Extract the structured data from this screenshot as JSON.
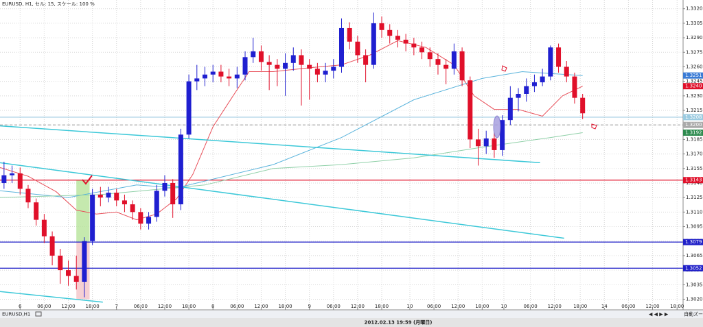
{
  "chart_data": {
    "type": "candlestick",
    "title": "EURUSD, H1, セル: 15, スケール: 100 %",
    "tab_label": "EURUSD,H1",
    "status_text": "2012.02.13 19:59 (月曜日)",
    "zoom_label": "自動ズー",
    "up_color": "#1f1fd0",
    "down_color": "#e0102a",
    "grid": true,
    "xlim": [
      -5,
      165
    ],
    "ylim": [
      1.3009,
      1.3329
    ],
    "xticks": [
      {
        "value": 0,
        "label": "6"
      },
      {
        "value": 6,
        "label": "06:00"
      },
      {
        "value": 12,
        "label": "12:00"
      },
      {
        "value": 18,
        "label": "18:00"
      },
      {
        "value": 24,
        "label": "7"
      },
      {
        "value": 30,
        "label": "06:00"
      },
      {
        "value": 36,
        "label": "12:00"
      },
      {
        "value": 42,
        "label": "18:00"
      },
      {
        "value": 48,
        "label": "8"
      },
      {
        "value": 54,
        "label": "06:00"
      },
      {
        "value": 60,
        "label": "12:00"
      },
      {
        "value": 66,
        "label": "18:00"
      },
      {
        "value": 72,
        "label": "9"
      },
      {
        "value": 78,
        "label": "06:00"
      },
      {
        "value": 84,
        "label": "12:00"
      },
      {
        "value": 90,
        "label": "18:00"
      },
      {
        "value": 97,
        "label": "10"
      },
      {
        "value": 103,
        "label": "06:00"
      },
      {
        "value": 109,
        "label": "12:00"
      },
      {
        "value": 115,
        "label": "18:00"
      },
      {
        "value": 120.4,
        "label": "10"
      },
      {
        "value": 127,
        "label": "06:00"
      },
      {
        "value": 133,
        "label": "12:00"
      },
      {
        "value": 139.4,
        "label": "18:00"
      },
      {
        "value": 145.4,
        "label": "14"
      },
      {
        "value": 151.4,
        "label": "06:00"
      },
      {
        "value": 157.4,
        "label": "12:00"
      },
      {
        "value": 163.5,
        "label": "18:00"
      }
    ],
    "yticks": [
      {
        "value": 1.302,
        "label": "1.3020"
      },
      {
        "value": 1.3035,
        "label": "1.3035"
      },
      {
        "value": 1.305,
        "label": "1.3050"
      },
      {
        "value": 1.3065,
        "label": "1.3065"
      },
      {
        "value": 1.308,
        "label": "1.3080"
      },
      {
        "value": 1.3095,
        "label": "1.3095"
      },
      {
        "value": 1.311,
        "label": "1.3110"
      },
      {
        "value": 1.3125,
        "label": "1.3125"
      },
      {
        "value": 1.314,
        "label": "1.3140"
      },
      {
        "value": 1.3155,
        "label": "1.3155"
      },
      {
        "value": 1.317,
        "label": "1.3170"
      },
      {
        "value": 1.3185,
        "label": "1.3185"
      },
      {
        "value": 1.32,
        "label": "1.3200"
      },
      {
        "value": 1.3215,
        "label": "1.3215"
      },
      {
        "value": 1.323,
        "label": "1.3230"
      },
      {
        "value": 1.3245,
        "label": "1.3245"
      },
      {
        "value": 1.326,
        "label": "1.3260"
      },
      {
        "value": 1.3275,
        "label": "1.3275"
      },
      {
        "value": 1.329,
        "label": "1.3290"
      },
      {
        "value": 1.3305,
        "label": "1.3305"
      },
      {
        "value": 1.332,
        "label": "1.3320"
      }
    ],
    "x": [
      -4,
      -2,
      0,
      2,
      4,
      6,
      8,
      10,
      12,
      14,
      16,
      18,
      20,
      22,
      24,
      26,
      28,
      30,
      32,
      34,
      36,
      38,
      40,
      42,
      44,
      46,
      48,
      50,
      52,
      54,
      56,
      58,
      60,
      62,
      64,
      66,
      68,
      70,
      72,
      74,
      76,
      78,
      80,
      82,
      84,
      86,
      88,
      90,
      92,
      94,
      96,
      98,
      100,
      102,
      104,
      106,
      108,
      110,
      112,
      114,
      116,
      118,
      120,
      122,
      124,
      126,
      128,
      130,
      132,
      134,
      136,
      138,
      140
    ],
    "open": [
      1.314,
      1.3148,
      1.315,
      1.3134,
      1.312,
      1.3102,
      1.3085,
      1.3065,
      1.305,
      1.3044,
      1.3038,
      1.308,
      1.3128,
      1.3125,
      1.313,
      1.3122,
      1.3118,
      1.311,
      1.3098,
      1.3105,
      1.3132,
      1.314,
      1.3118,
      1.319,
      1.3245,
      1.3248,
      1.3252,
      1.3255,
      1.325,
      1.3248,
      1.3252,
      1.327,
      1.3276,
      1.3265,
      1.3262,
      1.3258,
      1.3264,
      1.3272,
      1.3262,
      1.3258,
      1.3252,
      1.3256,
      1.326,
      1.33,
      1.3286,
      1.3272,
      1.3262,
      1.3305,
      1.3298,
      1.3292,
      1.3288,
      1.3284,
      1.328,
      1.3275,
      1.3268,
      1.3262,
      1.3258,
      1.3276,
      1.3246,
      1.3185,
      1.3178,
      1.3186,
      1.3174,
      1.3205,
      1.3228,
      1.3232,
      1.324,
      1.3244,
      1.325,
      1.328,
      1.326,
      1.325,
      1.3228
    ],
    "high": [
      1.3162,
      1.3158,
      1.3156,
      1.3138,
      1.3124,
      1.3108,
      1.309,
      1.3072,
      1.306,
      1.3065,
      1.3084,
      1.3134,
      1.3136,
      1.3136,
      1.3134,
      1.3128,
      1.3122,
      1.3114,
      1.311,
      1.3138,
      1.3148,
      1.3144,
      1.3196,
      1.3252,
      1.3262,
      1.326,
      1.3262,
      1.3262,
      1.3258,
      1.326,
      1.3276,
      1.329,
      1.3282,
      1.3272,
      1.3268,
      1.3274,
      1.328,
      1.3278,
      1.3268,
      1.3264,
      1.3264,
      1.3268,
      1.331,
      1.3306,
      1.3292,
      1.3278,
      1.3316,
      1.3312,
      1.3304,
      1.3298,
      1.3294,
      1.329,
      1.3286,
      1.328,
      1.3274,
      1.3268,
      1.3284,
      1.328,
      1.325,
      1.3196,
      1.3194,
      1.3192,
      1.321,
      1.324,
      1.3238,
      1.3248,
      1.3252,
      1.3258,
      1.3282,
      1.3284,
      1.3266,
      1.3254,
      1.3232
    ],
    "low": [
      1.3134,
      1.314,
      1.3128,
      1.3114,
      1.3096,
      1.3078,
      1.3055,
      1.3036,
      1.3034,
      1.303,
      1.3022,
      1.3076,
      1.3116,
      1.312,
      1.3116,
      1.311,
      1.3102,
      1.3092,
      1.3092,
      1.31,
      1.3126,
      1.3104,
      1.3112,
      1.3186,
      1.3236,
      1.324,
      1.3244,
      1.3244,
      1.324,
      1.3238,
      1.3246,
      1.3264,
      1.3256,
      1.3236,
      1.324,
      1.323,
      1.3256,
      1.322,
      1.3226,
      1.3244,
      1.3244,
      1.3248,
      1.3254,
      1.3278,
      1.3264,
      1.3244,
      1.3258,
      1.329,
      1.3284,
      1.328,
      1.3276,
      1.3272,
      1.3268,
      1.326,
      1.3252,
      1.3242,
      1.3252,
      1.324,
      1.3176,
      1.3158,
      1.317,
      1.3166,
      1.3168,
      1.32,
      1.3214,
      1.3224,
      1.3234,
      1.324,
      1.3246,
      1.3254,
      1.3244,
      1.3222,
      1.3206
    ],
    "close": [
      1.3148,
      1.315,
      1.3134,
      1.312,
      1.3102,
      1.3085,
      1.3065,
      1.305,
      1.3044,
      1.3038,
      1.308,
      1.3128,
      1.3125,
      1.313,
      1.3122,
      1.3118,
      1.311,
      1.3098,
      1.3105,
      1.3132,
      1.314,
      1.3118,
      1.319,
      1.3245,
      1.3248,
      1.3252,
      1.3255,
      1.325,
      1.3248,
      1.3252,
      1.327,
      1.3276,
      1.3265,
      1.3262,
      1.3258,
      1.3264,
      1.3272,
      1.3262,
      1.3258,
      1.3252,
      1.3256,
      1.326,
      1.33,
      1.3286,
      1.3272,
      1.3262,
      1.3305,
      1.3298,
      1.3292,
      1.3288,
      1.3284,
      1.328,
      1.3275,
      1.3268,
      1.3262,
      1.3258,
      1.3276,
      1.3246,
      1.3185,
      1.3178,
      1.3186,
      1.3174,
      1.3205,
      1.3228,
      1.3232,
      1.324,
      1.3244,
      1.325,
      1.328,
      1.326,
      1.325,
      1.3228,
      1.3212
    ],
    "series": [
      {
        "color": "#e8505a",
        "x": [
          -5,
          2,
          9,
          14,
          19,
          24,
          29,
          34,
          39,
          43,
          48,
          53,
          57,
          63,
          72,
          80,
          87,
          94,
          101,
          108,
          113,
          118,
          124,
          130,
          135,
          140
        ],
        "values": [
          1.3156,
          1.3147,
          1.3131,
          1.3112,
          1.3108,
          1.311,
          1.3102,
          1.3108,
          1.3124,
          1.3149,
          1.3198,
          1.323,
          1.3255,
          1.3255,
          1.3259,
          1.3262,
          1.3272,
          1.3287,
          1.328,
          1.3262,
          1.323,
          1.3216,
          1.3216,
          1.3209,
          1.323,
          1.324
        ]
      },
      {
        "color": "#5bb4dc",
        "x": [
          -5,
          12,
          29,
          39,
          46,
          63,
          80,
          98,
          115,
          125,
          140
        ],
        "values": [
          1.3132,
          1.3125,
          1.3138,
          1.3135,
          1.3142,
          1.3159,
          1.3187,
          1.3226,
          1.3248,
          1.3255,
          1.3251
        ]
      },
      {
        "color": "#8fd0a8",
        "x": [
          -5,
          20,
          46,
          63,
          80,
          98,
          115,
          132,
          140
        ],
        "values": [
          1.3125,
          1.3128,
          1.3138,
          1.3155,
          1.3159,
          1.3166,
          1.3177,
          1.3187,
          1.3192
        ]
      }
    ],
    "trendlines": [
      {
        "x": [
          -5.1,
          129.4
        ],
        "values": [
          1.3199,
          1.3161
        ]
      },
      {
        "x": [
          -5.1,
          135.4
        ],
        "values": [
          1.3161,
          1.3083
        ]
      },
      {
        "x": [
          -5.1,
          20.6
        ],
        "values": [
          1.3028,
          1.3017
        ]
      }
    ],
    "zones": [
      {
        "color": "#b6e39a",
        "x": [
          14,
          17.3
        ],
        "values": [
          1.3143,
          1.3079
        ]
      },
      {
        "color": "#f4c4c8",
        "x": [
          14,
          17.3
        ],
        "values": [
          1.3079,
          1.302
        ]
      }
    ],
    "price_lines": [
      {
        "color": "#e0102a",
        "value": 1.3143,
        "label": "1.3143"
      },
      {
        "color": "#2020c8",
        "value": 1.3079,
        "label": "1.3079"
      },
      {
        "color": "#2020c8",
        "value": 1.3052,
        "label": "1.3052"
      },
      {
        "color": "#9ccbe0",
        "value": 1.3208,
        "label": "1.3208"
      },
      {
        "color": "#aaaaaa",
        "value": 1.32,
        "label": "1.3200"
      }
    ],
    "price_markers": [
      {
        "color": "#3a7bd5",
        "value": 1.3251,
        "label": "1.3251"
      },
      {
        "color": "#e0102a",
        "value": 1.324,
        "label": "1.3240"
      },
      {
        "color": "#2d8a4e",
        "value": 1.3192,
        "label": "1.3192"
      }
    ]
  }
}
